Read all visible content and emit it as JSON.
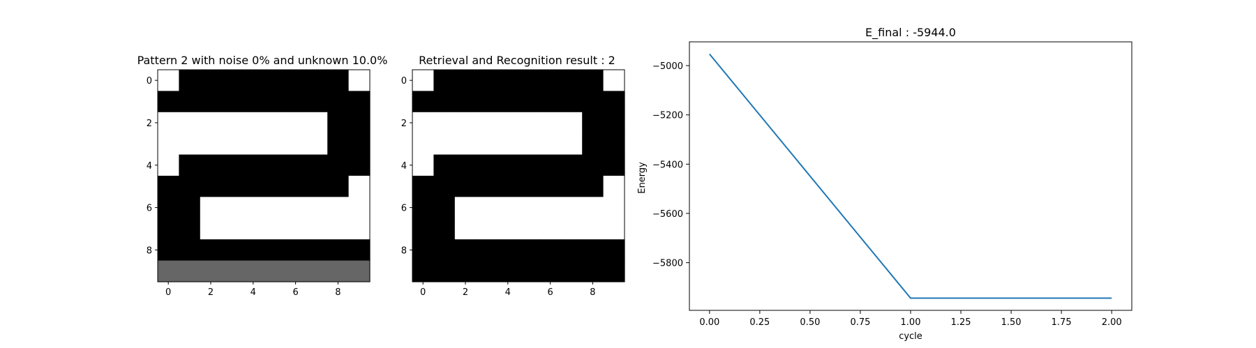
{
  "chart_data": [
    {
      "type": "heatmap",
      "title": "Pattern 2 with noise 0% and unknown 10.0%",
      "xticks": [
        0,
        2,
        4,
        6,
        8
      ],
      "yticks": [
        0,
        2,
        4,
        6,
        8
      ],
      "grid": [
        [
          1,
          0,
          0,
          0,
          0,
          0,
          0,
          0,
          0,
          1
        ],
        [
          0,
          0,
          0,
          0,
          0,
          0,
          0,
          0,
          0,
          0
        ],
        [
          1,
          1,
          1,
          1,
          1,
          1,
          1,
          1,
          0,
          0
        ],
        [
          1,
          1,
          1,
          1,
          1,
          1,
          1,
          1,
          0,
          0
        ],
        [
          1,
          0,
          0,
          0,
          0,
          0,
          0,
          0,
          0,
          0
        ],
        [
          0,
          0,
          0,
          0,
          0,
          0,
          0,
          0,
          0,
          1
        ],
        [
          0,
          0,
          1,
          1,
          1,
          1,
          1,
          1,
          1,
          1
        ],
        [
          0,
          0,
          1,
          1,
          1,
          1,
          1,
          1,
          1,
          1
        ],
        [
          0,
          0,
          0,
          0,
          0,
          0,
          0,
          0,
          0,
          0
        ],
        [
          0.4,
          0.4,
          0.4,
          0.4,
          0.4,
          0.4,
          0.4,
          0.4,
          0.4,
          0.4
        ]
      ],
      "colors": {
        "white": "#ffffff",
        "black": "#000000",
        "unknown": "#666666"
      }
    },
    {
      "type": "heatmap",
      "title": "Retrieval and Recognition result : 2",
      "xticks": [
        0,
        2,
        4,
        6,
        8
      ],
      "yticks": [
        0,
        2,
        4,
        6,
        8
      ],
      "grid": [
        [
          1,
          0,
          0,
          0,
          0,
          0,
          0,
          0,
          0,
          1
        ],
        [
          0,
          0,
          0,
          0,
          0,
          0,
          0,
          0,
          0,
          0
        ],
        [
          1,
          1,
          1,
          1,
          1,
          1,
          1,
          1,
          0,
          0
        ],
        [
          1,
          1,
          1,
          1,
          1,
          1,
          1,
          1,
          0,
          0
        ],
        [
          1,
          0,
          0,
          0,
          0,
          0,
          0,
          0,
          0,
          0
        ],
        [
          0,
          0,
          0,
          0,
          0,
          0,
          0,
          0,
          0,
          1
        ],
        [
          0,
          0,
          1,
          1,
          1,
          1,
          1,
          1,
          1,
          1
        ],
        [
          0,
          0,
          1,
          1,
          1,
          1,
          1,
          1,
          1,
          1
        ],
        [
          0,
          0,
          0,
          0,
          0,
          0,
          0,
          0,
          0,
          0
        ],
        [
          0,
          0,
          0,
          0,
          0,
          0,
          0,
          0,
          0,
          0
        ]
      ],
      "colors": {
        "white": "#ffffff",
        "black": "#000000"
      }
    },
    {
      "type": "line",
      "title": "E_final : -5944.0",
      "xlabel": "cycle",
      "ylabel": "Energy",
      "x": [
        0,
        1,
        2
      ],
      "series": [
        {
          "values": [
            -4953,
            -5944,
            -5944
          ],
          "color": "#1f77b4"
        }
      ],
      "xlim": [
        -0.1,
        2.1
      ],
      "ylim": [
        -5993.5,
        -4903.5
      ],
      "xticks": [
        0.0,
        0.25,
        0.5,
        0.75,
        1.0,
        1.25,
        1.5,
        1.75,
        2.0
      ],
      "xtick_labels": [
        "0.00",
        "0.25",
        "0.50",
        "0.75",
        "1.00",
        "1.25",
        "1.50",
        "1.75",
        "2.00"
      ],
      "yticks": [
        -5800,
        -5600,
        -5400,
        -5200,
        -5000
      ],
      "ytick_labels": [
        "−5800",
        "−5600",
        "−5400",
        "−5200",
        "−5000"
      ],
      "grid": false
    }
  ]
}
